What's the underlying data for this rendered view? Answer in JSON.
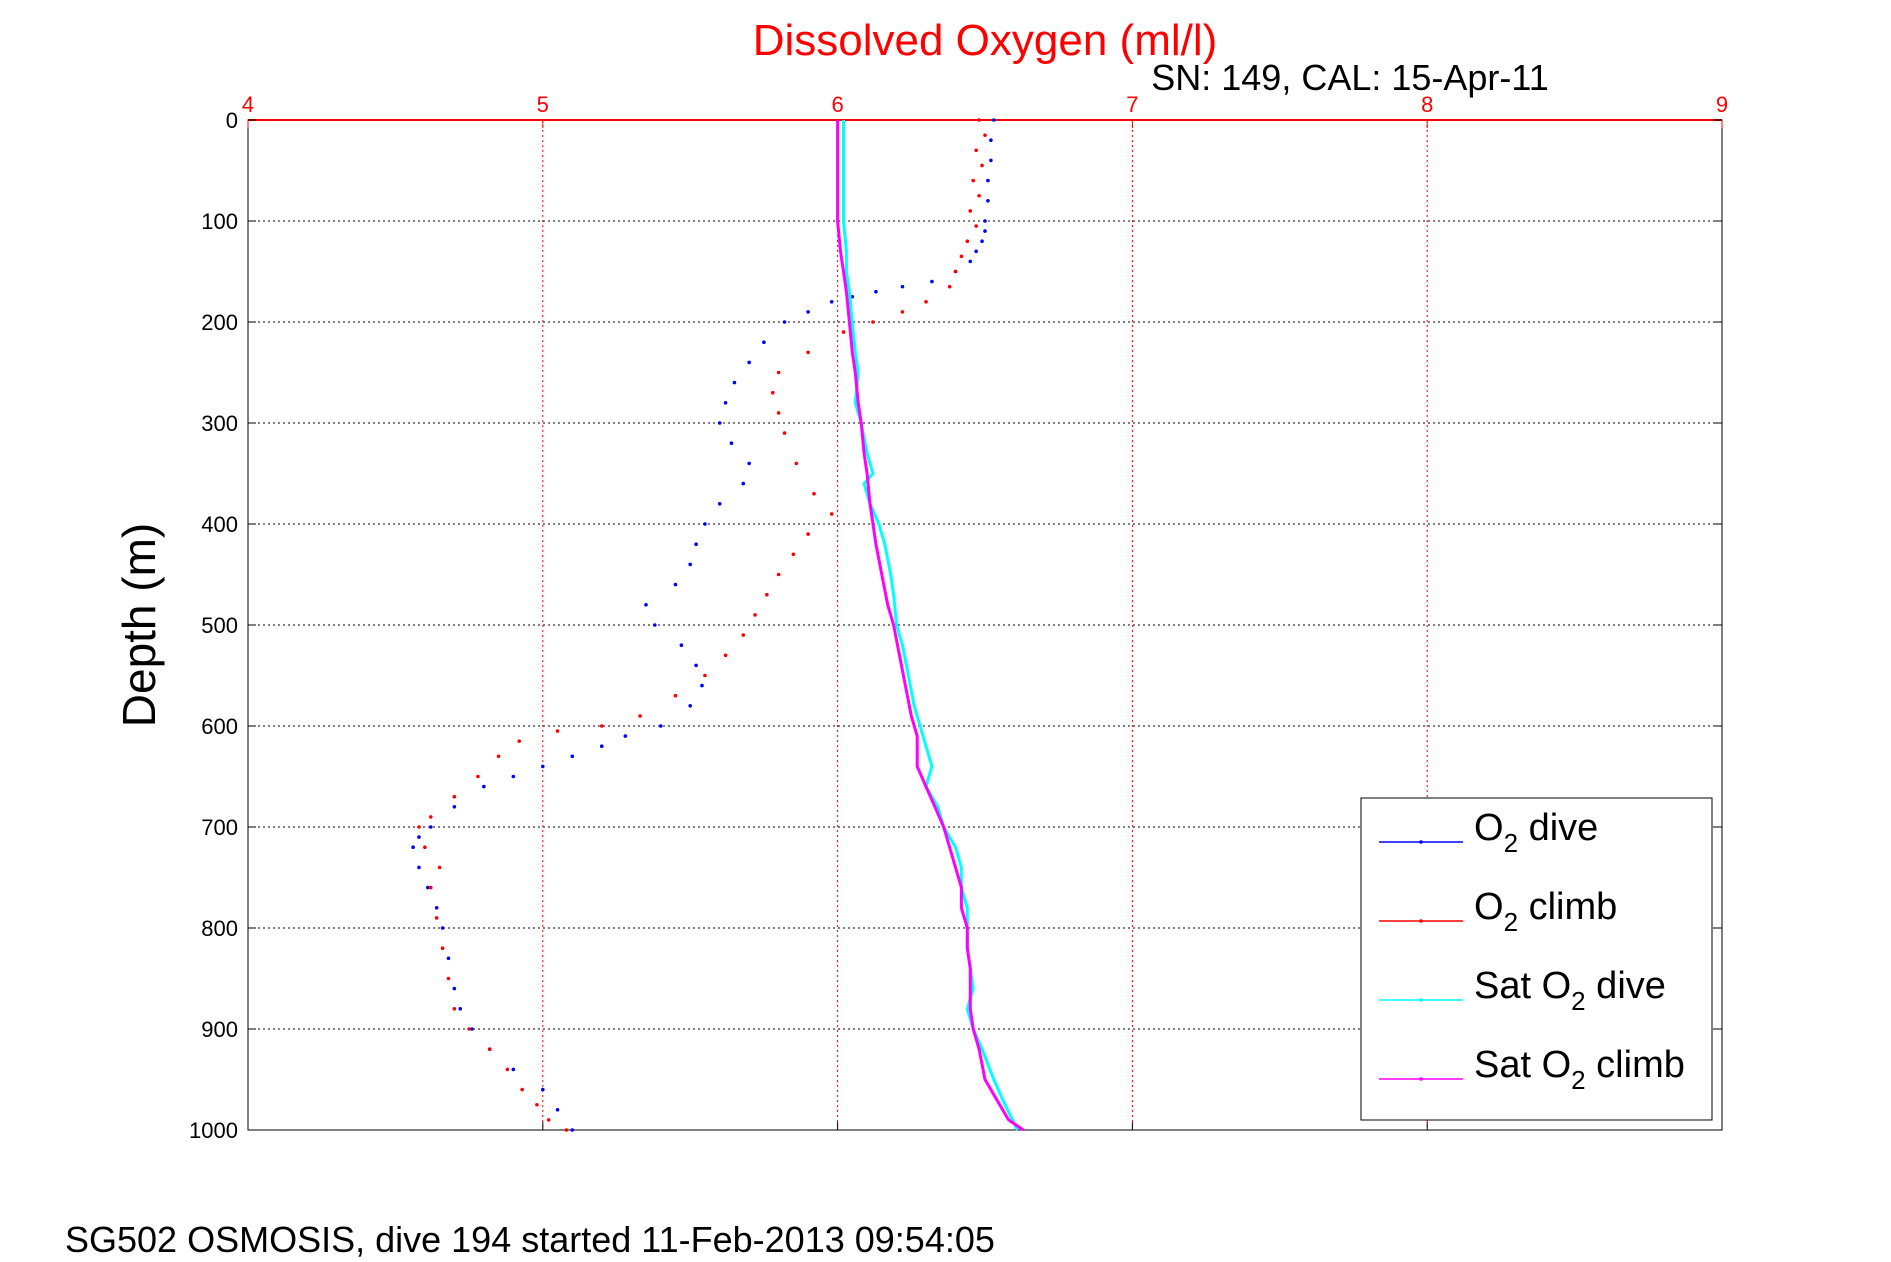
{
  "chart_data": {
    "type": "scatter",
    "title": "Dissolved Oxygen (ml/l)",
    "subtitle": "SN: 149, CAL: 15-Apr-11",
    "ylabel": "Depth (m)",
    "xlabel": "",
    "xlim": [
      4,
      9
    ],
    "ylim": [
      0,
      1000
    ],
    "y_reversed": true,
    "x_axis_position": "top",
    "xticks": [
      "4",
      "5",
      "6",
      "7",
      "8",
      "9"
    ],
    "yticks": [
      "0",
      "100",
      "200",
      "300",
      "400",
      "500",
      "600",
      "700",
      "800",
      "900",
      "1000"
    ],
    "grid": true,
    "legend_position": "bottom-right",
    "series": [
      {
        "name": "O2 dive",
        "legend_main": "O",
        "legend_sub": "2",
        "legend_rest": " dive",
        "color": "#0000ff",
        "style": "dots",
        "x": [
          6.53,
          6.52,
          6.52,
          6.51,
          6.51,
          6.5,
          6.5,
          6.49,
          6.47,
          6.45,
          6.4,
          6.32,
          6.22,
          6.13,
          6.05,
          5.98,
          5.9,
          5.82,
          5.75,
          5.7,
          5.65,
          5.62,
          5.6,
          5.64,
          5.7,
          5.68,
          5.6,
          5.55,
          5.52,
          5.5,
          5.45,
          5.35,
          5.38,
          5.47,
          5.52,
          5.54,
          5.5,
          5.4,
          5.28,
          5.2,
          5.1,
          5.0,
          4.9,
          4.8,
          4.7,
          4.62,
          4.58,
          4.56,
          4.58,
          4.61,
          4.64,
          4.66,
          4.68,
          4.7,
          4.72,
          4.76,
          4.82,
          4.9,
          5.0,
          5.05,
          5.1
        ],
        "y": [
          0,
          20,
          40,
          60,
          80,
          100,
          110,
          120,
          130,
          140,
          150,
          160,
          165,
          170,
          175,
          180,
          190,
          200,
          220,
          240,
          260,
          280,
          300,
          320,
          340,
          360,
          380,
          400,
          420,
          440,
          460,
          480,
          500,
          520,
          540,
          560,
          580,
          600,
          610,
          620,
          630,
          640,
          650,
          660,
          680,
          700,
          710,
          720,
          740,
          760,
          780,
          800,
          830,
          860,
          880,
          900,
          920,
          940,
          960,
          980,
          1000
        ]
      },
      {
        "name": "O2 climb",
        "legend_main": "O",
        "legend_sub": "2",
        "legend_rest": " climb",
        "color": "#ff0000",
        "style": "dots",
        "x": [
          6.48,
          6.5,
          6.47,
          6.49,
          6.46,
          6.48,
          6.45,
          6.47,
          6.44,
          6.42,
          6.4,
          6.38,
          6.3,
          6.22,
          6.12,
          6.02,
          5.9,
          5.8,
          5.78,
          5.8,
          5.82,
          5.86,
          5.92,
          5.98,
          5.9,
          5.85,
          5.8,
          5.76,
          5.72,
          5.68,
          5.62,
          5.55,
          5.45,
          5.33,
          5.2,
          5.05,
          4.92,
          4.85,
          4.78,
          4.7,
          4.62,
          4.58,
          4.6,
          4.65,
          4.62,
          4.64,
          4.66,
          4.68,
          4.7,
          4.75,
          4.82,
          4.88,
          4.93,
          4.98,
          5.02,
          5.08
        ],
        "y": [
          0,
          15,
          30,
          45,
          60,
          75,
          90,
          105,
          120,
          135,
          150,
          165,
          180,
          190,
          200,
          210,
          230,
          250,
          270,
          290,
          310,
          340,
          370,
          390,
          410,
          430,
          450,
          470,
          490,
          510,
          530,
          550,
          570,
          590,
          600,
          605,
          615,
          630,
          650,
          670,
          690,
          700,
          720,
          740,
          760,
          790,
          820,
          850,
          880,
          900,
          920,
          940,
          960,
          975,
          990,
          1000
        ]
      },
      {
        "name": "Sat O2 dive",
        "legend_main": "Sat O",
        "legend_sub": "2",
        "legend_rest": " dive",
        "color": "#00ffff",
        "style": "line",
        "x": [
          6.02,
          6.02,
          6.02,
          6.03,
          6.03,
          6.04,
          6.05,
          6.06,
          6.07,
          6.06,
          6.08,
          6.1,
          6.12,
          6.09,
          6.11,
          6.14,
          6.16,
          6.18,
          6.19,
          6.2,
          6.22,
          6.24,
          6.26,
          6.28,
          6.3,
          6.32,
          6.3,
          6.34,
          6.36,
          6.4,
          6.42,
          6.42,
          6.44,
          6.44,
          6.44,
          6.45,
          6.46,
          6.44,
          6.46,
          6.49,
          6.53,
          6.56,
          6.61
        ],
        "y": [
          0,
          50,
          100,
          130,
          150,
          170,
          200,
          230,
          250,
          280,
          300,
          330,
          350,
          360,
          380,
          400,
          420,
          450,
          470,
          500,
          520,
          550,
          580,
          600,
          620,
          640,
          660,
          680,
          700,
          720,
          740,
          760,
          780,
          800,
          820,
          840,
          860,
          880,
          900,
          920,
          950,
          970,
          1000
        ]
      },
      {
        "name": "Sat O2 climb",
        "legend_main": "Sat O",
        "legend_sub": "2",
        "legend_rest": " climb",
        "color": "#ff00ff",
        "style": "line",
        "x": [
          6.0,
          6.0,
          6.0,
          6.01,
          6.02,
          6.03,
          6.04,
          6.05,
          6.06,
          6.07,
          6.08,
          6.09,
          6.1,
          6.11,
          6.12,
          6.13,
          6.15,
          6.17,
          6.19,
          6.21,
          6.23,
          6.25,
          6.27,
          6.27,
          6.3,
          6.33,
          6.36,
          6.38,
          6.4,
          6.42,
          6.42,
          6.44,
          6.44,
          6.45,
          6.45,
          6.45,
          6.46,
          6.48,
          6.5,
          6.54,
          6.58,
          6.63
        ],
        "y": [
          0,
          50,
          100,
          130,
          150,
          170,
          200,
          230,
          250,
          280,
          300,
          330,
          350,
          380,
          400,
          420,
          450,
          480,
          500,
          530,
          560,
          590,
          610,
          640,
          660,
          680,
          700,
          720,
          740,
          760,
          780,
          800,
          820,
          840,
          860,
          880,
          900,
          920,
          950,
          970,
          990,
          1000
        ]
      }
    ]
  },
  "footer": "SG502 OSMOSIS, dive 194 started 11-Feb-2013 09:54:05"
}
